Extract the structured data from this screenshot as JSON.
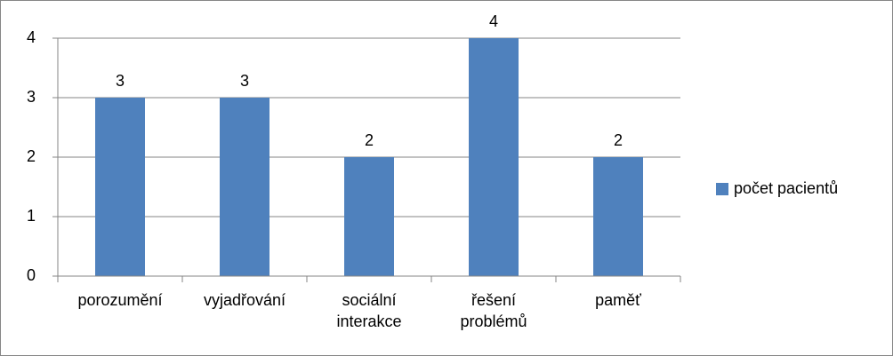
{
  "chart_data": {
    "type": "bar",
    "categories": [
      "porozumění",
      "vyjadřování",
      "sociální interakce",
      "řešení problémů",
      "paměť"
    ],
    "series": [
      {
        "name": "počet pacientů",
        "color": "#4f81bd",
        "values": [
          3,
          3,
          2,
          4,
          2
        ]
      }
    ],
    "ylim": [
      0,
      4
    ],
    "yticks": [
      0,
      1,
      2,
      3,
      4
    ],
    "grid": true,
    "legend": "right"
  }
}
